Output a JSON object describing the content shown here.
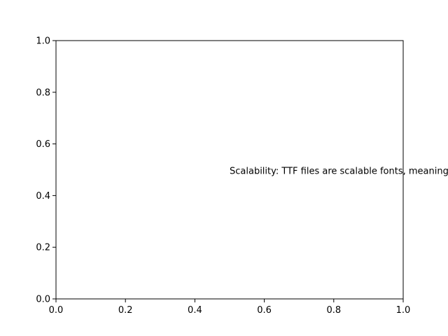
{
  "chart_data": {
    "type": "scatter",
    "series": [],
    "xlim": [
      0.0,
      1.0
    ],
    "ylim": [
      0.0,
      1.0
    ],
    "x_ticks": [
      0.0,
      0.2,
      0.4,
      0.6,
      0.8,
      1.0
    ],
    "y_ticks": [
      0.0,
      0.2,
      0.4,
      0.6,
      0.8,
      1.0
    ],
    "x_tick_labels": [
      "0.0",
      "0.2",
      "0.4",
      "0.6",
      "0.8",
      "1.0"
    ],
    "y_tick_labels": [
      "0.0",
      "0.2",
      "0.4",
      "0.6",
      "0.8",
      "1.0"
    ],
    "grid": false,
    "annotations": [
      {
        "x": 0.5,
        "y": 0.5,
        "text": "Scalability: TTF files are scalable fonts, meaning they can be resized without losing quality."
      }
    ]
  }
}
